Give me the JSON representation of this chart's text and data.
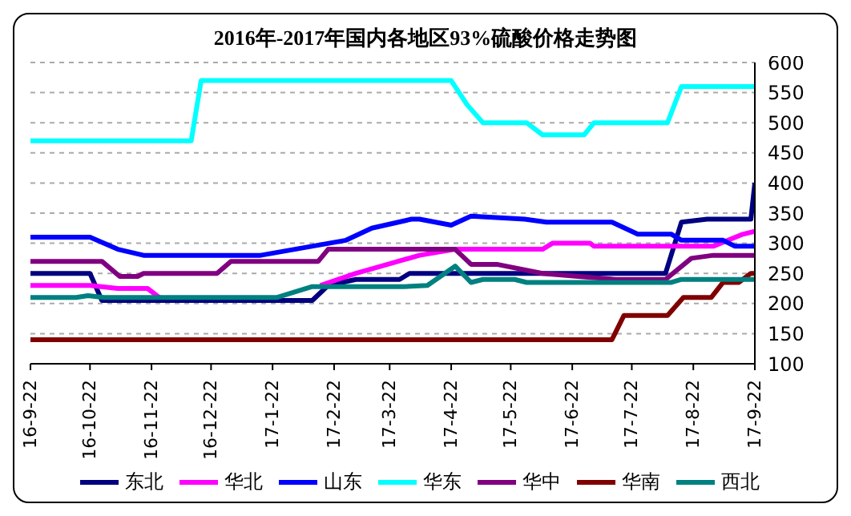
{
  "chart_data": {
    "type": "line",
    "title": "2016年-2017年国内各地区93%硫酸价格走势图",
    "xlim": [
      "2016-09-22",
      "2017-09-22"
    ],
    "xticks": [
      {
        "value": "2016-09-22",
        "label": "16-9-22"
      },
      {
        "value": "2016-10-22",
        "label": "16-10-22"
      },
      {
        "value": "2016-11-22",
        "label": "16-11-22"
      },
      {
        "value": "2016-12-22",
        "label": "16-12-22"
      },
      {
        "value": "2017-01-22",
        "label": "17-1-22"
      },
      {
        "value": "2017-02-22",
        "label": "17-2-22"
      },
      {
        "value": "2017-03-22",
        "label": "17-3-22"
      },
      {
        "value": "2017-04-22",
        "label": "17-4-22"
      },
      {
        "value": "2017-05-22",
        "label": "17-5-22"
      },
      {
        "value": "2017-06-22",
        "label": "17-6-22"
      },
      {
        "value": "2017-07-22",
        "label": "17-7-22"
      },
      {
        "value": "2017-08-22",
        "label": "17-8-22"
      },
      {
        "value": "2017-09-22",
        "label": "17-9-22"
      }
    ],
    "ylim": [
      100,
      600
    ],
    "yticks": [
      100,
      150,
      200,
      250,
      300,
      350,
      400,
      450,
      500,
      550,
      600
    ],
    "grid": "y",
    "legend": "bottom",
    "marker": "none",
    "line_style": "solid",
    "series": [
      {
        "name": "东北",
        "color": "#000080",
        "x": [
          "2016-09-22",
          "2016-10-22",
          "2016-10-28",
          "2017-02-11",
          "2017-02-19",
          "2017-03-05",
          "2017-03-27",
          "2017-04-01",
          "2017-08-08",
          "2017-08-16",
          "2017-08-29",
          "2017-09-20",
          "2017-09-22"
        ],
        "values": [
          250,
          250,
          205,
          205,
          230,
          240,
          240,
          250,
          250,
          335,
          340,
          340,
          400
        ]
      },
      {
        "name": "华北",
        "color": "#ff00ff",
        "x": [
          "2016-09-22",
          "2016-10-22",
          "2016-11-05",
          "2016-11-20",
          "2016-11-26",
          "2017-02-14",
          "2017-02-15",
          "2017-03-05",
          "2017-03-21",
          "2017-04-06",
          "2017-04-24",
          "2017-06-07",
          "2017-06-12",
          "2017-07-01",
          "2017-07-03",
          "2017-09-01",
          "2017-09-16",
          "2017-09-22"
        ],
        "values": [
          230,
          230,
          225,
          225,
          210,
          null,
          230,
          250,
          265,
          280,
          290,
          290,
          300,
          300,
          295,
          295,
          315,
          320
        ]
      },
      {
        "name": "山东",
        "color": "#0000ff",
        "x": [
          "2016-09-22",
          "2016-10-22",
          "2016-11-05",
          "2016-11-18",
          "2017-01-16",
          "2017-02-28",
          "2017-03-13",
          "2017-04-02",
          "2017-04-06",
          "2017-04-22",
          "2017-05-02",
          "2017-05-29",
          "2017-06-09",
          "2017-07-12",
          "2017-07-25",
          "2017-08-11",
          "2017-08-16",
          "2017-09-06",
          "2017-09-12",
          "2017-09-22"
        ],
        "values": [
          310,
          310,
          290,
          280,
          280,
          305,
          325,
          340,
          340,
          330,
          345,
          340,
          335,
          335,
          315,
          315,
          305,
          305,
          295,
          295
        ]
      },
      {
        "name": "华东",
        "color": "#00ffff",
        "x": [
          "2016-09-22",
          "2016-12-12",
          "2016-12-17",
          "2017-04-22",
          "2017-04-30",
          "2017-05-08",
          "2017-05-30",
          "2017-06-07",
          "2017-06-28",
          "2017-07-03",
          "2017-08-09",
          "2017-08-16",
          "2017-09-22"
        ],
        "values": [
          470,
          470,
          570,
          570,
          530,
          500,
          500,
          480,
          480,
          500,
          500,
          560,
          560
        ]
      },
      {
        "name": "华中",
        "color": "#800080",
        "x": [
          "2016-09-22",
          "2016-10-28",
          "2016-11-06",
          "2016-11-15",
          "2016-11-18",
          "2016-12-25",
          "2017-01-01",
          "2017-02-14",
          "2017-02-19",
          "2017-04-24",
          "2017-05-02",
          "2017-05-15",
          "2017-06-07",
          "2017-06-25",
          "2017-07-14",
          "2017-08-08",
          "2017-08-21",
          "2017-09-01",
          "2017-09-22"
        ],
        "values": [
          270,
          270,
          245,
          245,
          250,
          250,
          270,
          270,
          290,
          290,
          265,
          265,
          250,
          245,
          240,
          240,
          275,
          280,
          280
        ]
      },
      {
        "name": "华南",
        "color": "#800000",
        "x": [
          "2016-09-22",
          "2017-07-12",
          "2017-07-18",
          "2017-08-09",
          "2017-08-17",
          "2017-08-31",
          "2017-09-06",
          "2017-09-14",
          "2017-09-20",
          "2017-09-22"
        ],
        "values": [
          140,
          140,
          180,
          180,
          210,
          210,
          235,
          235,
          250,
          250
        ]
      },
      {
        "name": "西北",
        "color": "#008080",
        "x": [
          "2016-09-22",
          "2016-10-15",
          "2016-10-21",
          "2016-10-29",
          "2017-01-24",
          "2017-02-11",
          "2017-03-29",
          "2017-04-10",
          "2017-04-24",
          "2017-05-02",
          "2017-05-08",
          "2017-05-24",
          "2017-05-30",
          "2017-08-11",
          "2017-08-16",
          "2017-09-22"
        ],
        "values": [
          210,
          210,
          213,
          210,
          210,
          228,
          228,
          230,
          262,
          235,
          240,
          240,
          235,
          235,
          240,
          240
        ]
      }
    ]
  }
}
